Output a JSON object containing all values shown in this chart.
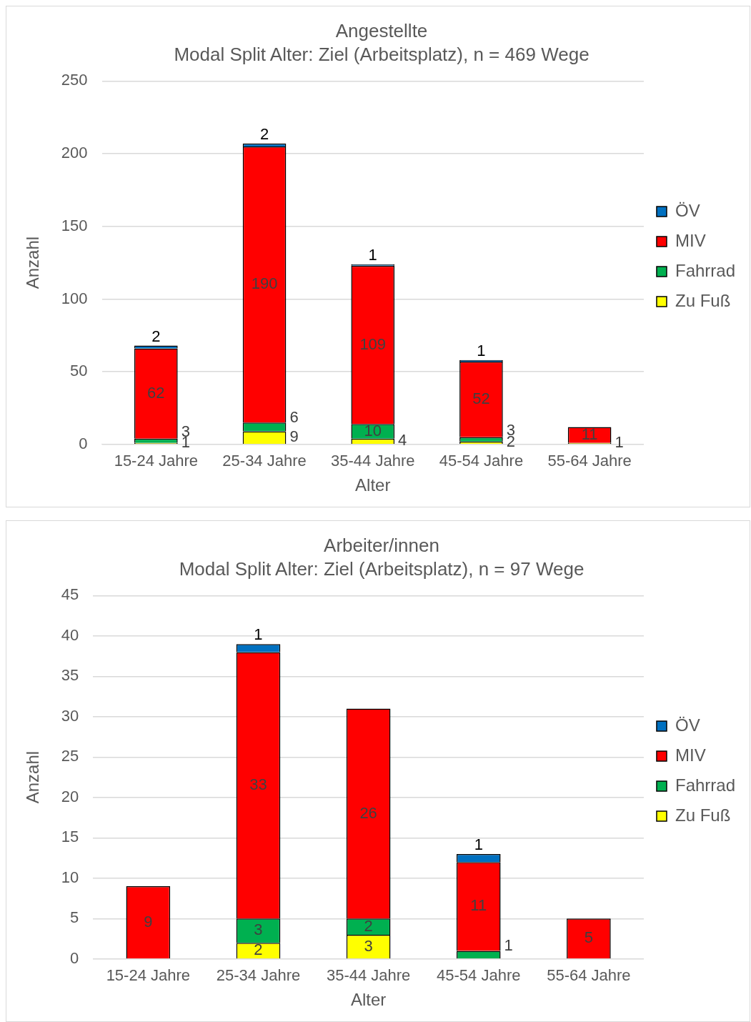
{
  "chart_data": [
    {
      "type": "bar",
      "title": "Angestellte",
      "subtitle": "Modal Split Alter: Ziel (Arbeitsplatz), n = 469 Wege",
      "xlabel": "Alter",
      "ylabel": "Anzahl",
      "categories": [
        "15-24 Jahre",
        "25-34 Jahre",
        "35-44 Jahre",
        "45-54 Jahre",
        "55-64 Jahre"
      ],
      "stacked": true,
      "ylim": [
        0,
        250
      ],
      "yticks": [
        0,
        50,
        100,
        150,
        200,
        250
      ],
      "grid": "y",
      "legend": "right",
      "data_labels": true,
      "series": [
        {
          "name": "Zu Fuß",
          "color": "#ffff00",
          "values": [
            1,
            9,
            4,
            2,
            1
          ]
        },
        {
          "name": "Fahrrad",
          "color": "#00b050",
          "values": [
            3,
            6,
            10,
            3,
            null
          ]
        },
        {
          "name": "MIV",
          "color": "#ff0000",
          "values": [
            62,
            190,
            109,
            52,
            11
          ]
        },
        {
          "name": "ÖV",
          "color": "#0070c0",
          "values": [
            2,
            2,
            1,
            1,
            null
          ]
        }
      ]
    },
    {
      "type": "bar",
      "title": "Arbeiter/innen",
      "subtitle": "Modal Split Alter: Ziel (Arbeitsplatz), n = 97 Wege",
      "xlabel": "Alter",
      "ylabel": "Anzahl",
      "categories": [
        "15-24 Jahre",
        "25-34 Jahre",
        "35-44 Jahre",
        "45-54 Jahre",
        "55-64 Jahre"
      ],
      "stacked": true,
      "ylim": [
        0,
        45
      ],
      "yticks": [
        0,
        5,
        10,
        15,
        20,
        25,
        30,
        35,
        40,
        45
      ],
      "grid": "y",
      "legend": "right",
      "data_labels": true,
      "series": [
        {
          "name": "Zu Fuß",
          "color": "#ffff00",
          "values": [
            null,
            2,
            3,
            null,
            null
          ]
        },
        {
          "name": "Fahrrad",
          "color": "#00b050",
          "values": [
            null,
            3,
            2,
            1,
            null
          ]
        },
        {
          "name": "MIV",
          "color": "#ff0000",
          "values": [
            9,
            33,
            26,
            11,
            5
          ]
        },
        {
          "name": "ÖV",
          "color": "#0070c0",
          "values": [
            null,
            1,
            null,
            1,
            null
          ]
        }
      ]
    }
  ]
}
